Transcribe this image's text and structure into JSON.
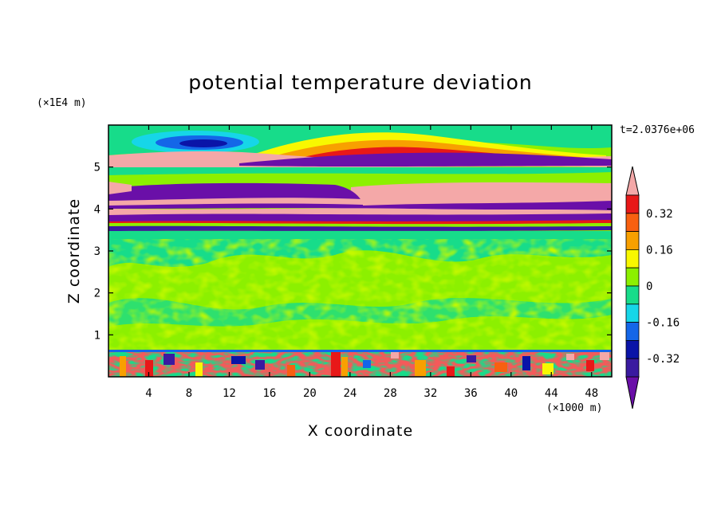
{
  "chart_data": {
    "type": "heatmap",
    "title": "potential temperature deviation",
    "xlabel": "X coordinate",
    "ylabel": "Z coordinate",
    "x_unit": "(×1000 m)",
    "y_unit": "(×1E4 m)",
    "time_label": "t=2.0376e+06",
    "xlim": [
      0,
      50
    ],
    "ylim": [
      0,
      6
    ],
    "x_ticks": [
      4,
      8,
      12,
      16,
      20,
      24,
      28,
      32,
      36,
      40,
      44,
      48
    ],
    "y_ticks": [
      1,
      2,
      3,
      4,
      5
    ],
    "colorbar": {
      "levels": [
        -0.4,
        -0.32,
        -0.24,
        -0.16,
        -0.08,
        0,
        0.08,
        0.16,
        0.24,
        0.32,
        0.4
      ],
      "colors": [
        "#6a0fa8",
        "#3a1aa0",
        "#0a14a8",
        "#1466e8",
        "#16d6e8",
        "#17dc8a",
        "#8cf000",
        "#f8f800",
        "#f8a000",
        "#f86010",
        "#e81818",
        "#f4a8a8"
      ],
      "labels": [
        "0.32",
        "0.16",
        "0",
        "-0.16",
        "-0.32"
      ],
      "label_values": [
        0.32,
        0.16,
        0,
        -0.16,
        -0.32
      ],
      "extend": "both"
    },
    "field_regions": [
      {
        "z": [
          0,
          0.62
        ],
        "value": -0.05,
        "note": "noisy mixed layer"
      },
      {
        "z": [
          0.62,
          3.5
        ],
        "value": 0.02
      },
      {
        "z": [
          3.5,
          3.7
        ],
        "value": -0.4
      },
      {
        "z": [
          3.7,
          4.6
        ],
        "value": 0.42
      },
      {
        "z": [
          4.6,
          5.3
        ],
        "value": 0.42
      },
      {
        "z": [
          5.3,
          6.0
        ],
        "value": 0.03
      }
    ],
    "grid": false,
    "legend_position": "right"
  }
}
